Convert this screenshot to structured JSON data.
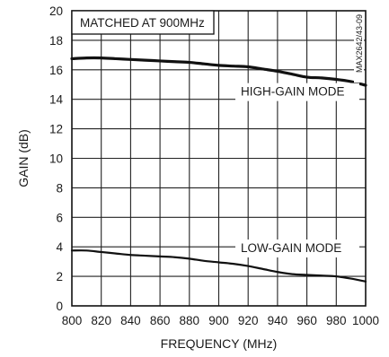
{
  "chart_data": {
    "type": "line",
    "title": "",
    "xlabel": "FREQUENCY (MHz)",
    "ylabel": "GAIN (dB)",
    "xlim": [
      800,
      1000
    ],
    "ylim": [
      0,
      20
    ],
    "x_ticks": [
      800,
      820,
      840,
      860,
      880,
      900,
      920,
      940,
      960,
      980,
      1000
    ],
    "y_ticks": [
      0,
      2,
      4,
      6,
      8,
      10,
      12,
      14,
      16,
      18,
      20
    ],
    "grid": true,
    "annotations": {
      "matched": "MATCHED AT 900MHz",
      "high": "HIGH-GAIN MODE",
      "low": "LOW-GAIN MODE",
      "figure_id": "MAX2642/43-09"
    },
    "series": [
      {
        "name": "HIGH-GAIN MODE",
        "x": [
          800,
          810,
          820,
          830,
          840,
          850,
          860,
          870,
          880,
          890,
          900,
          910,
          920,
          930,
          940,
          950,
          960,
          970,
          980,
          990,
          1000
        ],
        "values": [
          16.75,
          16.8,
          16.8,
          16.75,
          16.7,
          16.65,
          16.6,
          16.55,
          16.5,
          16.4,
          16.3,
          16.25,
          16.2,
          16.05,
          15.9,
          15.7,
          15.5,
          15.45,
          15.35,
          15.2,
          14.95
        ]
      },
      {
        "name": "LOW-GAIN MODE",
        "x": [
          800,
          810,
          820,
          830,
          840,
          850,
          860,
          870,
          880,
          890,
          900,
          910,
          920,
          930,
          940,
          950,
          960,
          970,
          980,
          990,
          1000
        ],
        "values": [
          3.75,
          3.75,
          3.65,
          3.55,
          3.45,
          3.4,
          3.35,
          3.3,
          3.2,
          3.05,
          2.95,
          2.85,
          2.7,
          2.5,
          2.3,
          2.15,
          2.1,
          2.05,
          2.0,
          1.85,
          1.65
        ]
      }
    ]
  }
}
